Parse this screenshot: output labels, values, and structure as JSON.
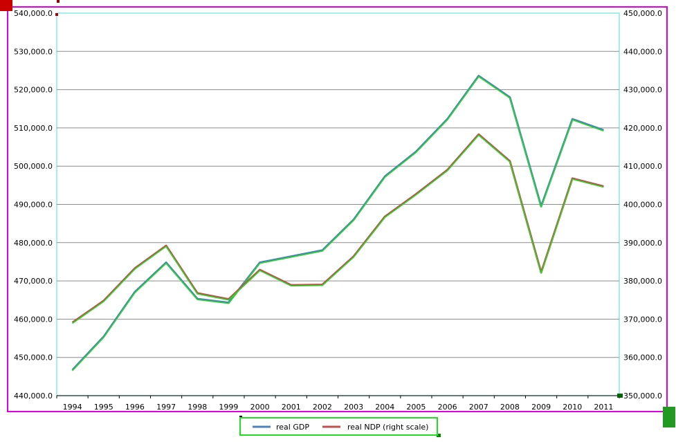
{
  "chart_data": {
    "type": "line",
    "title": "",
    "xlabel": "",
    "ylabel": "",
    "categories": [
      "1994",
      "1995",
      "1996",
      "1997",
      "1998",
      "1999",
      "2000",
      "2001",
      "2002",
      "2003",
      "2004",
      "2005",
      "2006",
      "2007",
      "2008",
      "2009",
      "2010",
      "2011"
    ],
    "y_left": {
      "range": [
        440000,
        540000
      ],
      "ticks": [
        "440,000.0",
        "450,000.0",
        "460,000.0",
        "470,000.0",
        "480,000.0",
        "490,000.0",
        "500,000.0",
        "510,000.0",
        "520,000.0",
        "530,000.0",
        "540,000.0"
      ]
    },
    "y_right": {
      "range": [
        350000,
        450000
      ],
      "ticks": [
        "350,000.0",
        "360,000.0",
        "370,000.0",
        "380,000.0",
        "390,000.0",
        "400,000.0",
        "410,000.0",
        "420,000.0",
        "430,000.0",
        "440,000.0",
        "450,000.0"
      ]
    },
    "grid": true,
    "legend_position": "bottom",
    "series": [
      {
        "name": "real GDP",
        "axis": "left",
        "color": "#4f81bd",
        "values": [
          446700,
          455400,
          467100,
          474800,
          465300,
          464300,
          474800,
          476400,
          478000,
          486000,
          497300,
          503800,
          512300,
          523600,
          518000,
          489500,
          512300,
          509400
        ]
      },
      {
        "name": "real NDP (right scale)",
        "axis": "right",
        "color": "#c0504d",
        "values": [
          369100,
          374800,
          383300,
          389200,
          376800,
          375200,
          382900,
          378900,
          379000,
          386400,
          396800,
          402700,
          409000,
          418300,
          411300,
          382200,
          406800,
          404700
        ]
      }
    ],
    "highlight_color": "#22dd22"
  }
}
